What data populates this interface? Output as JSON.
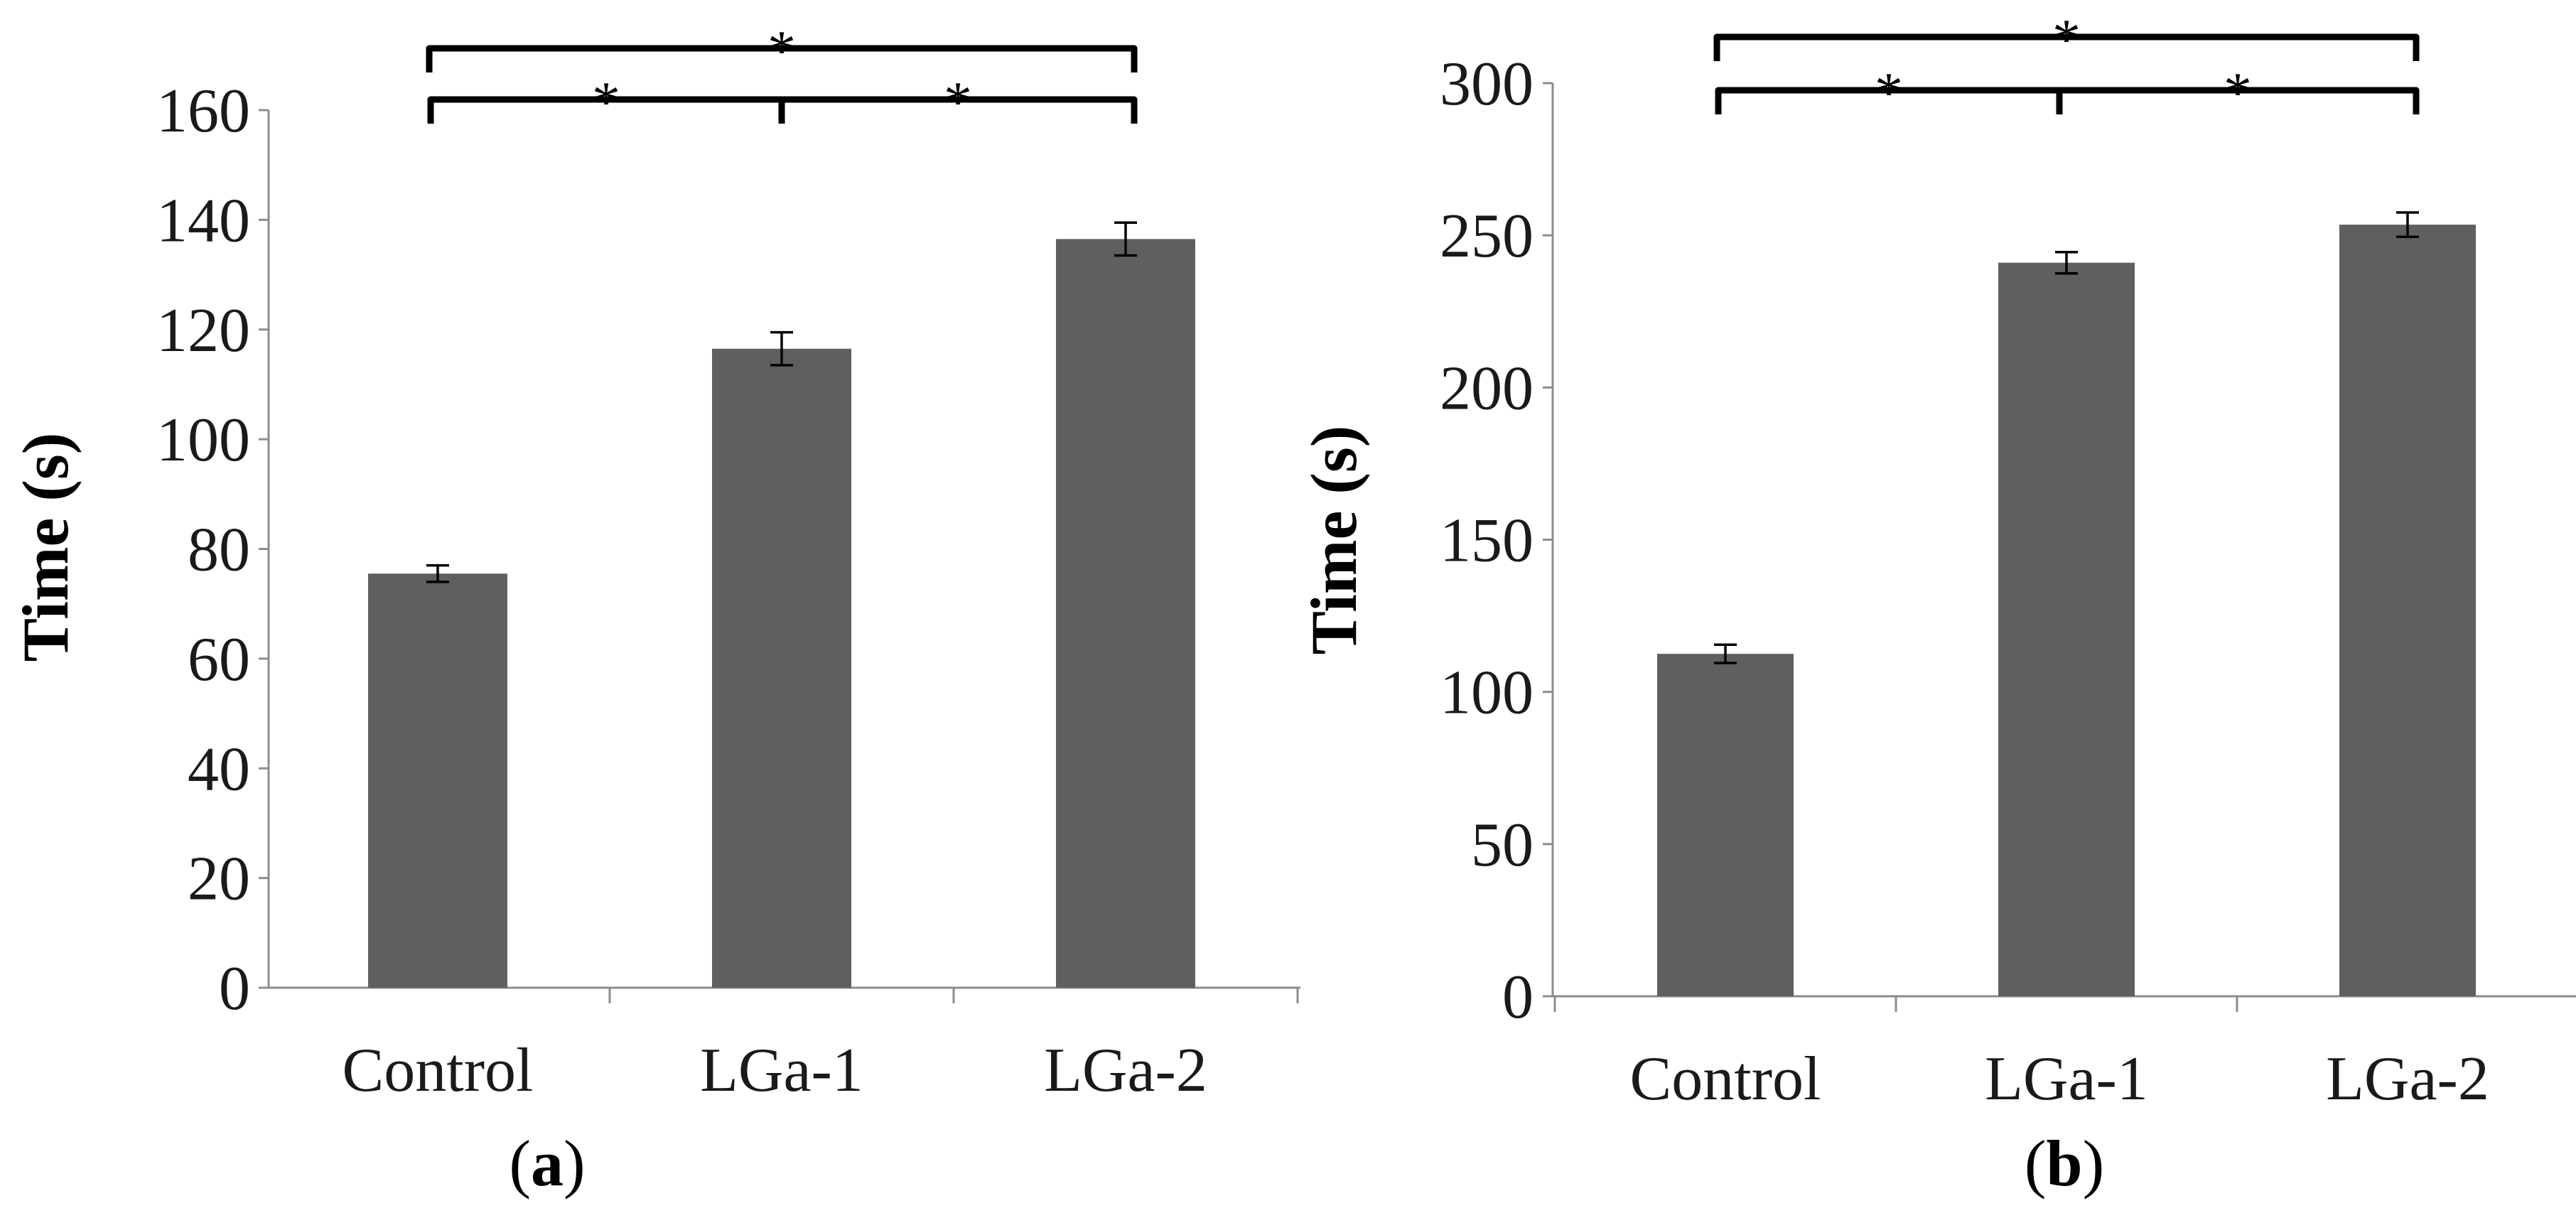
{
  "chart_data": [
    {
      "type": "bar",
      "panel": "a",
      "title": "",
      "xlabel": "",
      "ylabel": "Time (s)",
      "categories": [
        "Control",
        "LGa-1",
        "LGa-2"
      ],
      "values": [
        75.5,
        116.5,
        136.5
      ],
      "error": [
        1.5,
        3,
        3
      ],
      "ylim": [
        0,
        160
      ],
      "yticks": [
        0,
        20,
        40,
        60,
        80,
        100,
        120,
        140,
        160
      ],
      "ytick_labels": [
        "0",
        "20",
        "40",
        "60",
        "80",
        "100",
        "120",
        "140",
        "160"
      ],
      "bar_color": "#5f5f5f",
      "significance": [
        {
          "from": "Control",
          "to": "LGa-1",
          "label": "*"
        },
        {
          "from": "LGa-1",
          "to": "LGa-2",
          "label": "*"
        },
        {
          "from": "Control",
          "to": "LGa-2",
          "label": "*"
        }
      ],
      "panel_label": {
        "open": "(",
        "letter": "a",
        "close": ")"
      }
    },
    {
      "type": "bar",
      "panel": "b",
      "title": "",
      "xlabel": "",
      "ylabel": "Time (s)",
      "categories": [
        "Control",
        "LGa-1",
        "LGa-2"
      ],
      "values": [
        112.5,
        241,
        253.5
      ],
      "error": [
        3,
        3.5,
        4
      ],
      "ylim": [
        0,
        300
      ],
      "yticks": [
        0,
        50,
        100,
        150,
        200,
        250,
        300
      ],
      "ytick_labels": [
        "0",
        "50",
        "100",
        "150",
        "200",
        "250",
        "300"
      ],
      "bar_color": "#5f5f5f",
      "significance": [
        {
          "from": "Control",
          "to": "LGa-1",
          "label": "*"
        },
        {
          "from": "LGa-1",
          "to": "LGa-2",
          "label": "*"
        },
        {
          "from": "Control",
          "to": "LGa-2",
          "label": "*"
        }
      ],
      "panel_label": {
        "open": "(",
        "letter": "b",
        "close": ")"
      }
    }
  ]
}
